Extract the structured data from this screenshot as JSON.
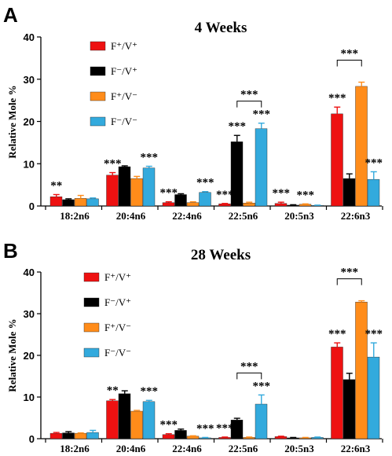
{
  "chart_data": [
    {
      "panel": "A",
      "type": "bar",
      "title": "4 Weeks",
      "ylabel": "Relative Mole %",
      "ylim": [
        0,
        40
      ],
      "yticks": [
        0,
        10,
        20,
        30,
        40
      ],
      "categories": [
        "18:2n6",
        "20:4n6",
        "22:4n6",
        "22:5n6",
        "20:5n3",
        "22:6n3"
      ],
      "legend": {
        "placement": "top-left"
      },
      "series": [
        {
          "name": "F⁺/V⁺",
          "color": "#ee1111",
          "values": [
            2.2,
            7.3,
            0.8,
            0.5,
            0.6,
            21.8
          ],
          "errors": [
            0.5,
            0.6,
            0.2,
            0.1,
            0.3,
            1.6
          ]
        },
        {
          "name": "F⁻/V⁺",
          "color": "#000000",
          "values": [
            1.5,
            9.3,
            2.7,
            15.2,
            0.2,
            6.5
          ],
          "errors": [
            0.2,
            0.2,
            0.2,
            1.5,
            0.1,
            1.1
          ]
        },
        {
          "name": "F⁺/V⁻",
          "color": "#ff8c1a",
          "values": [
            1.8,
            6.5,
            0.8,
            0.7,
            0.4,
            28.3
          ],
          "errors": [
            0.7,
            0.5,
            0.2,
            0.2,
            0.1,
            1.0
          ]
        },
        {
          "name": "F⁻/V⁻",
          "color": "#33aadd",
          "values": [
            1.7,
            9.0,
            3.2,
            18.3,
            0.1,
            6.3
          ],
          "errors": [
            0.2,
            0.4,
            0.2,
            1.3,
            0.1,
            1.8
          ]
        }
      ],
      "annotations": [
        {
          "text": "**",
          "category": 0,
          "series": 0
        },
        {
          "text": "***",
          "category": 1,
          "series": 0
        },
        {
          "text": "***",
          "category": 1,
          "series": 3
        },
        {
          "text": "***",
          "category": 2,
          "series": 0
        },
        {
          "text": "***",
          "category": 2,
          "series": 3
        },
        {
          "text": "***",
          "category": 3,
          "series": 0
        },
        {
          "text": "***",
          "category": 3,
          "series": 1
        },
        {
          "text": "***",
          "category": 3,
          "series": 3
        },
        {
          "text": "***",
          "category": 4,
          "series": 0
        },
        {
          "text": "***",
          "category": 4,
          "series": 2
        },
        {
          "text": "***",
          "category": 5,
          "series": 0
        },
        {
          "text": "***",
          "category": 5,
          "series": 3
        }
      ],
      "brackets": [
        {
          "text": "***",
          "category": 3,
          "from_series": 1,
          "to_series": 3
        },
        {
          "text": "***",
          "category": 5,
          "from_series": 0,
          "to_series": 2
        }
      ]
    },
    {
      "panel": "B",
      "type": "bar",
      "title": "28 Weeks",
      "ylabel": "Relative Mole %",
      "ylim": [
        0,
        40
      ],
      "yticks": [
        0,
        10,
        20,
        30,
        40
      ],
      "categories": [
        "18:2n6",
        "20:4n6",
        "22:4n6",
        "22:5n6",
        "20:5n3",
        "22:6n3"
      ],
      "legend": {
        "placement": "top-left"
      },
      "series": [
        {
          "name": "F⁺/V⁺",
          "color": "#ee1111",
          "values": [
            1.3,
            9.1,
            1.0,
            0.3,
            0.5,
            22.0
          ],
          "errors": [
            0.2,
            0.3,
            0.2,
            0.1,
            0.1,
            1.0
          ]
        },
        {
          "name": "F⁻/V⁺",
          "color": "#000000",
          "values": [
            1.4,
            10.8,
            2.0,
            4.5,
            0.2,
            14.2
          ],
          "errors": [
            0.3,
            0.7,
            0.3,
            0.4,
            0.1,
            1.5
          ]
        },
        {
          "name": "F⁺/V⁻",
          "color": "#ff8c1a",
          "values": [
            1.3,
            6.6,
            0.6,
            0.3,
            0.2,
            32.8
          ],
          "errors": [
            0.1,
            0.2,
            0.1,
            0.1,
            0.1,
            0.3
          ]
        },
        {
          "name": "F⁻/V⁻",
          "color": "#33aadd",
          "values": [
            1.5,
            8.9,
            0.2,
            8.3,
            0.3,
            19.6
          ],
          "errors": [
            0.5,
            0.3,
            0.1,
            2.2,
            0.1,
            3.4
          ]
        }
      ],
      "annotations": [
        {
          "text": "**",
          "category": 1,
          "series": 0
        },
        {
          "text": "***",
          "category": 1,
          "series": 3
        },
        {
          "text": "***",
          "category": 2,
          "series": 0
        },
        {
          "text": "***",
          "category": 2,
          "series": 3
        },
        {
          "text": "***",
          "category": 3,
          "series": 0
        },
        {
          "text": "***",
          "category": 3,
          "series": 3
        },
        {
          "text": "***",
          "category": 5,
          "series": 0
        },
        {
          "text": "***",
          "category": 5,
          "series": 3
        }
      ],
      "brackets": [
        {
          "text": "***",
          "category": 3,
          "from_series": 1,
          "to_series": 3
        },
        {
          "text": "***",
          "category": 5,
          "from_series": 0,
          "to_series": 2
        }
      ]
    }
  ]
}
